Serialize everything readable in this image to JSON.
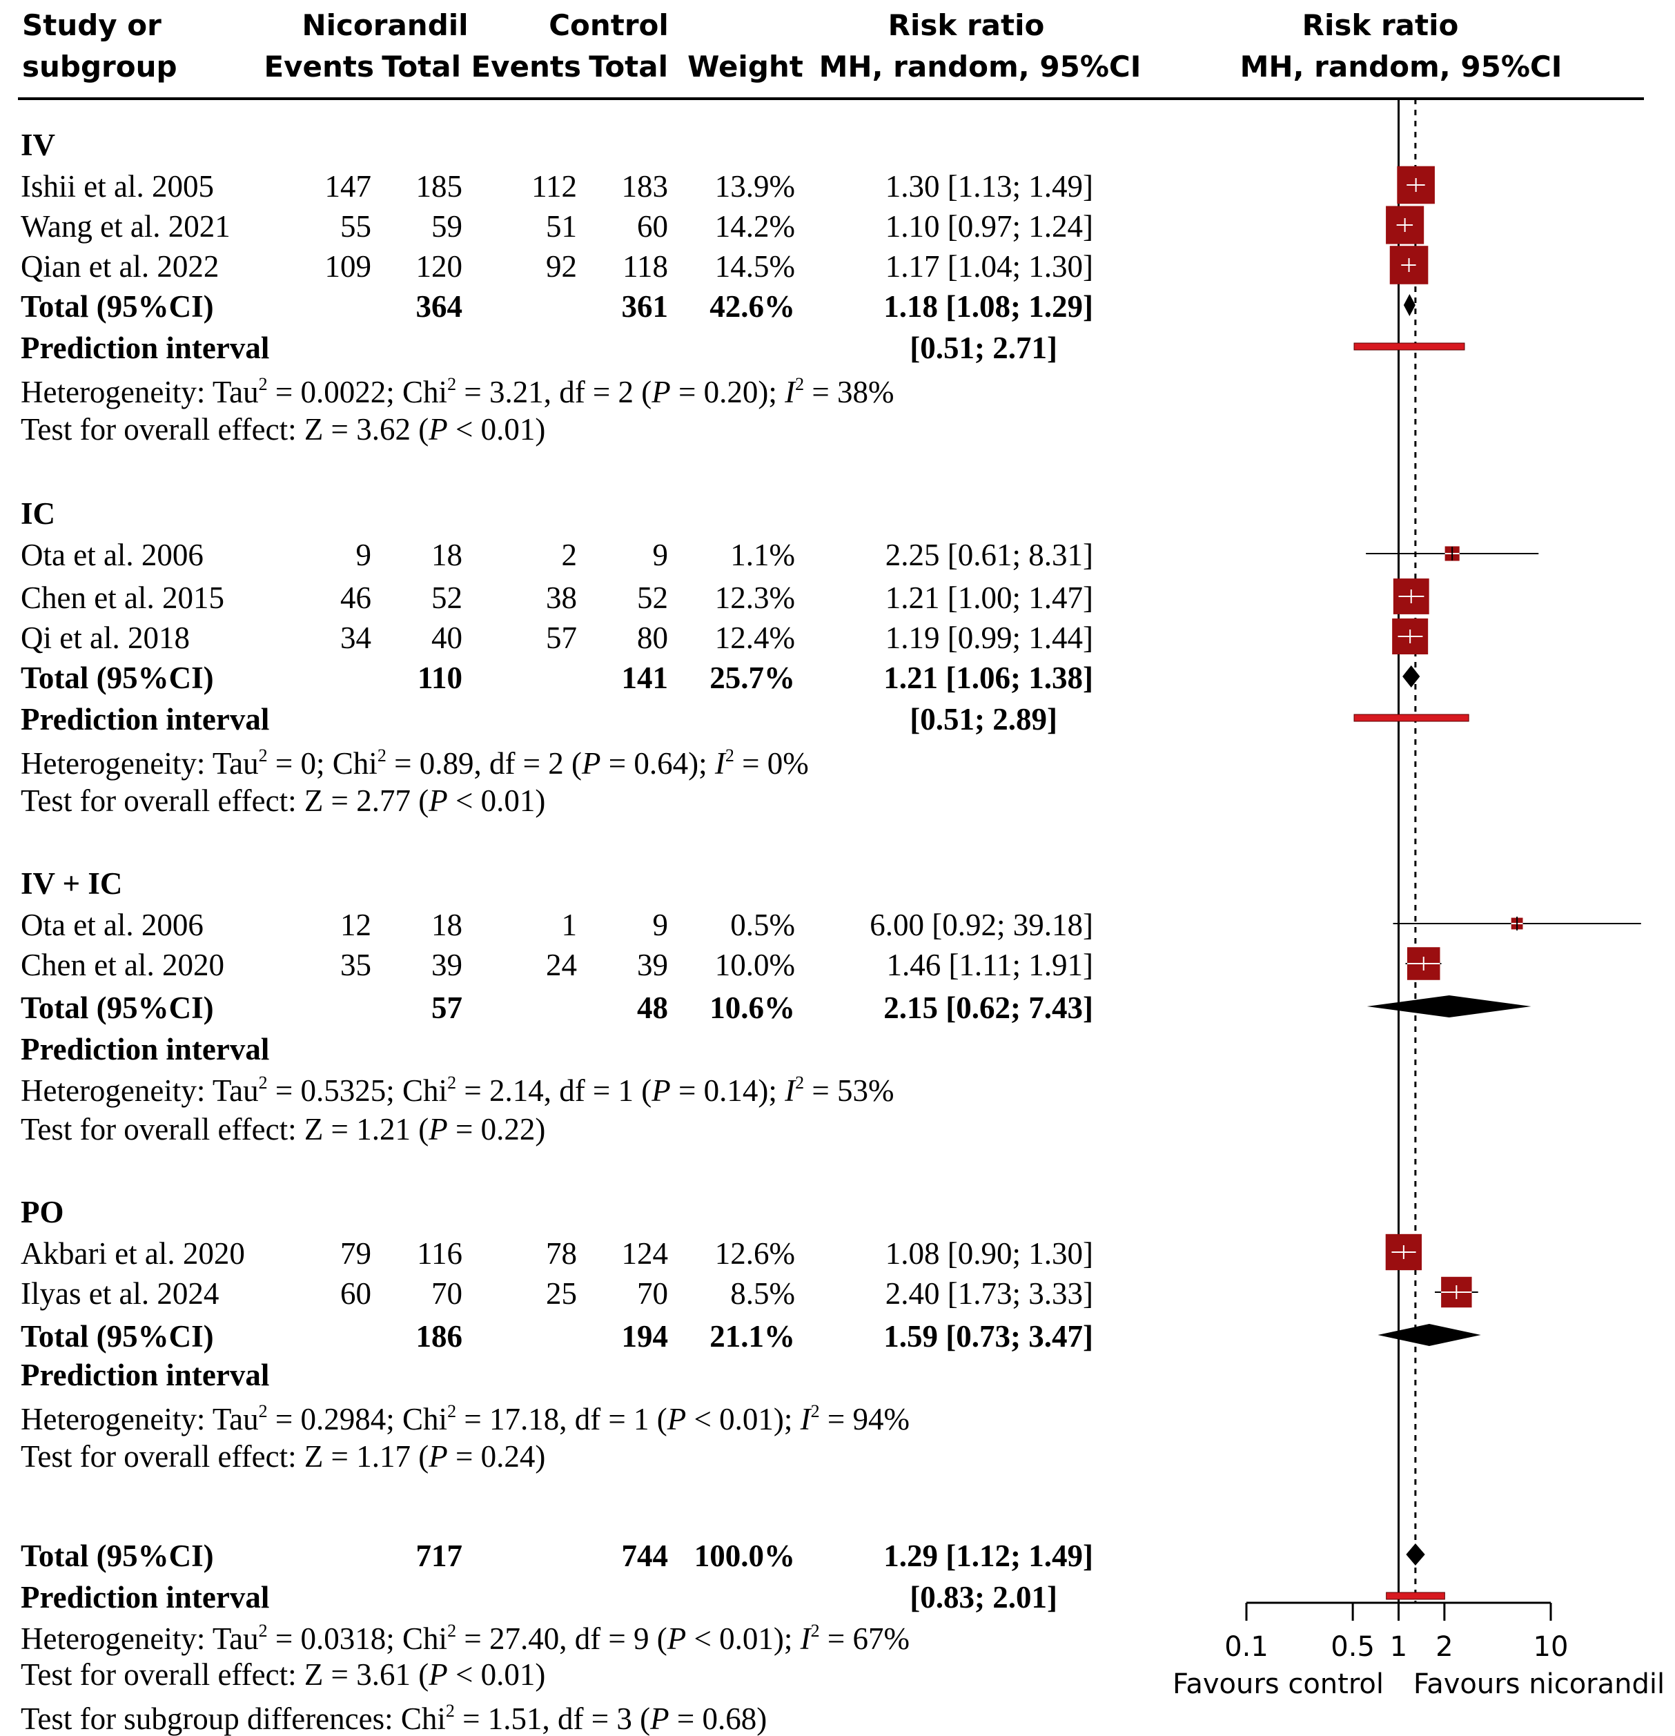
{
  "header": {
    "study_line1": "Study or",
    "study_line2": "subgroup",
    "nicorandil": "Nicorandil",
    "events1": "Events",
    "total1": "Total",
    "control": "Control",
    "events2": "Events",
    "total2": "Total",
    "weight": "Weight",
    "rr_text_line1": "Risk ratio",
    "rr_text_line2": "MH, random, 95%CI",
    "rr_plot_line1": "Risk ratio",
    "rr_plot_line2": "MH, random, 95%CI"
  },
  "labels": {
    "total": "Total (95%CI)",
    "prediction": "Prediction interval"
  },
  "subgroups": [
    {
      "name": "IV",
      "studies": [
        {
          "study": "Ishii et al. 2005",
          "e1": "147",
          "t1": "185",
          "e2": "112",
          "t2": "183",
          "weight": "13.9%",
          "rr": "1.30 [1.13;  1.49]"
        },
        {
          "study": "Wang et al. 2021",
          "e1": "55",
          "t1": "59",
          "e2": "51",
          "t2": "60",
          "weight": "14.2%",
          "rr": "1.10 [0.97;  1.24]"
        },
        {
          "study": "Qian et al. 2022",
          "e1": "109",
          "t1": "120",
          "e2": "92",
          "t2": "118",
          "weight": "14.5%",
          "rr": "1.17 [1.04;  1.30]"
        }
      ],
      "total": {
        "t1": "364",
        "t2": "361",
        "weight": "42.6%",
        "rr": "1.18 [1.08;  1.29]"
      },
      "prediction": "[0.51;  2.71]",
      "het": {
        "pre": "Heterogeneity: Tau",
        "tau": " = 0.0022; Chi",
        "chi": " = 3.21, df = 2 (",
        "p": "P",
        "pval": " = 0.20); ",
        "i": "I",
        "ival": " = 38%"
      },
      "test": {
        "pre": "Test for overall effect: Z = 3.62 (",
        "p": "P",
        "post": " < 0.01)"
      }
    },
    {
      "name": "IC",
      "studies": [
        {
          "study": "Ota et al. 2006",
          "e1": "9",
          "t1": "18",
          "e2": "2",
          "t2": "9",
          "weight": "1.1%",
          "rr": "2.25 [0.61;  8.31]"
        },
        {
          "study": "Chen et al. 2015",
          "e1": "46",
          "t1": "52",
          "e2": "38",
          "t2": "52",
          "weight": "12.3%",
          "rr": "1.21 [1.00;  1.47]"
        },
        {
          "study": "Qi et al. 2018",
          "e1": "34",
          "t1": "40",
          "e2": "57",
          "t2": "80",
          "weight": "12.4%",
          "rr": "1.19 [0.99;  1.44]"
        }
      ],
      "total": {
        "t1": "110",
        "t2": "141",
        "weight": "25.7%",
        "rr": "1.21 [1.06;  1.38]"
      },
      "prediction": "[0.51;  2.89]",
      "het": {
        "pre": "Heterogeneity: Tau",
        "tau": " = 0; Chi",
        "chi": " = 0.89, df = 2 (",
        "p": "P",
        "pval": " = 0.64); ",
        "i": "I",
        "ival": " = 0%"
      },
      "test": {
        "pre": "Test for overall effect: Z = 2.77 (",
        "p": "P",
        "post": " < 0.01)"
      }
    },
    {
      "name": "IV + IC",
      "studies": [
        {
          "study": "Ota et al. 2006",
          "e1": "12",
          "t1": "18",
          "e2": "1",
          "t2": "9",
          "weight": "0.5%",
          "rr": "6.00 [0.92; 39.18]"
        },
        {
          "study": "Chen et al. 2020",
          "e1": "35",
          "t1": "39",
          "e2": "24",
          "t2": "39",
          "weight": "10.0%",
          "rr": "1.46 [1.11;  1.91]"
        }
      ],
      "total": {
        "t1": "57",
        "t2": "48",
        "weight": "10.6%",
        "rr": "2.15 [0.62;  7.43]"
      },
      "prediction": "",
      "het": {
        "pre": "Heterogeneity: Tau",
        "tau": " = 0.5325; Chi",
        "chi": " = 2.14, df = 1 (",
        "p": "P",
        "pval": " = 0.14); ",
        "i": "I",
        "ival": " = 53%"
      },
      "test": {
        "pre": "Test for overall effect: Z = 1.21 (",
        "p": "P",
        "post": " = 0.22)"
      }
    },
    {
      "name": "PO",
      "studies": [
        {
          "study": "Akbari et al. 2020",
          "e1": "79",
          "t1": "116",
          "e2": "78",
          "t2": "124",
          "weight": "12.6%",
          "rr": "1.08 [0.90;  1.30]"
        },
        {
          "study": "Ilyas et al. 2024",
          "e1": "60",
          "t1": "70",
          "e2": "25",
          "t2": "70",
          "weight": "8.5%",
          "rr": "2.40 [1.73;  3.33]"
        }
      ],
      "total": {
        "t1": "186",
        "t2": "194",
        "weight": "21.1%",
        "rr": "1.59 [0.73;  3.47]"
      },
      "prediction": "",
      "het": {
        "pre": "Heterogeneity: Tau",
        "tau": " = 0.2984; Chi",
        "chi": " = 17.18, df = 1 (",
        "p": "P",
        "pval": " < 0.01); ",
        "i": "I",
        "ival": " = 94%"
      },
      "test": {
        "pre": "Test for overall effect: Z = 1.17 (",
        "p": "P",
        "post": " = 0.24)"
      }
    }
  ],
  "overall": {
    "total": {
      "t1": "717",
      "t2": "744",
      "weight": "100.0%",
      "rr": "1.29 [1.12;  1.49]"
    },
    "prediction": "[0.83;  2.01]",
    "het": {
      "pre": "Heterogeneity: Tau",
      "tau": " = 0.0318; Chi",
      "chi": " = 27.40, df = 9 (",
      "p": "P",
      "pval": " < 0.01); ",
      "i": "I",
      "ival": " = 67%"
    },
    "test": {
      "pre": "Test for overall effect: Z = 3.61 (",
      "p": "P",
      "post": " < 0.01)"
    },
    "subgroup_test": {
      "pre": "Test for subgroup differences: Chi",
      "post": " = 1.51, df = 3 (",
      "p": "P",
      "pval": " = 0.68)"
    }
  },
  "sup2": "2",
  "chart_data": {
    "type": "forest",
    "scale": "log",
    "xlim": [
      0.1,
      10
    ],
    "xticks": [
      0.1,
      0.5,
      1,
      2,
      10
    ],
    "xtick_labels": [
      "0.1",
      "0.5",
      "1",
      "2",
      "10"
    ],
    "xlabel_left": "Favours control",
    "xlabel_right": "Favours nicorandil",
    "null_line": 1,
    "overall_estimate_line": 1.29,
    "colors": {
      "square": "#9b0e10",
      "prediction": "#d71920",
      "diamond": "#000000"
    },
    "studies": [
      {
        "study": "Ishii et al. 2005",
        "group": "IV",
        "rr": 1.3,
        "lo": 1.13,
        "hi": 1.49,
        "weight": 13.9
      },
      {
        "study": "Wang et al. 2021",
        "group": "IV",
        "rr": 1.1,
        "lo": 0.97,
        "hi": 1.24,
        "weight": 14.2
      },
      {
        "study": "Qian et al. 2022",
        "group": "IV",
        "rr": 1.17,
        "lo": 1.04,
        "hi": 1.3,
        "weight": 14.5
      },
      {
        "study": "Ota et al. 2006",
        "group": "IC",
        "rr": 2.25,
        "lo": 0.61,
        "hi": 8.31,
        "weight": 1.1
      },
      {
        "study": "Chen et al. 2015",
        "group": "IC",
        "rr": 1.21,
        "lo": 1.0,
        "hi": 1.47,
        "weight": 12.3
      },
      {
        "study": "Qi et al. 2018",
        "group": "IC",
        "rr": 1.19,
        "lo": 0.99,
        "hi": 1.44,
        "weight": 12.4
      },
      {
        "study": "Ota et al. 2006",
        "group": "IV + IC",
        "rr": 6.0,
        "lo": 0.92,
        "hi": 39.18,
        "weight": 0.5
      },
      {
        "study": "Chen et al. 2020",
        "group": "IV + IC",
        "rr": 1.46,
        "lo": 1.11,
        "hi": 1.91,
        "weight": 10.0
      },
      {
        "study": "Akbari et al. 2020",
        "group": "PO",
        "rr": 1.08,
        "lo": 0.9,
        "hi": 1.3,
        "weight": 12.6
      },
      {
        "study": "Ilyas et al. 2024",
        "group": "PO",
        "rr": 2.4,
        "lo": 1.73,
        "hi": 3.33,
        "weight": 8.5
      }
    ],
    "pooled": [
      {
        "group": "IV",
        "rr": 1.18,
        "lo": 1.08,
        "hi": 1.29,
        "pi": [
          0.51,
          2.71
        ]
      },
      {
        "group": "IC",
        "rr": 1.21,
        "lo": 1.06,
        "hi": 1.38,
        "pi": [
          0.51,
          2.89
        ]
      },
      {
        "group": "IV + IC",
        "rr": 2.15,
        "lo": 0.62,
        "hi": 7.43,
        "pi": null
      },
      {
        "group": "PO",
        "rr": 1.59,
        "lo": 0.73,
        "hi": 3.47,
        "pi": null
      },
      {
        "group": "Overall",
        "rr": 1.29,
        "lo": 1.12,
        "hi": 1.49,
        "pi": [
          0.83,
          2.01
        ]
      }
    ]
  }
}
